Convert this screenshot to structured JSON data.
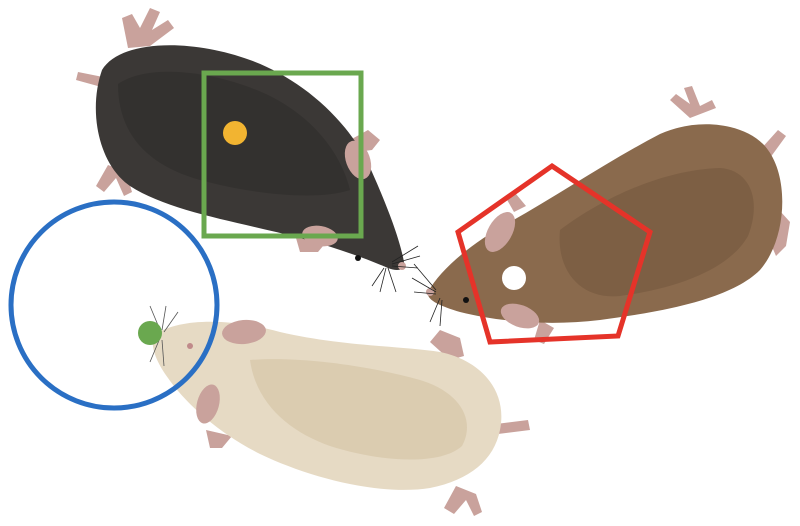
{
  "colors": {
    "background": "#ffffff",
    "mouse_black_body": "#3b3836",
    "mouse_black_shade": "#2e2b2a",
    "mouse_brown_body": "#8a6a4d",
    "mouse_brown_shade": "#6f543c",
    "mouse_cream_body": "#e6dac4",
    "mouse_cream_shade": "#d6c6a8",
    "mouse_skin": "#c9a29c",
    "mouse_skin_dark": "#a9807a",
    "square_marker": "#6aa84f",
    "pentagon_marker": "#e53329",
    "circle_marker": "#2a6fc4",
    "dot_yellow": "#f2b431",
    "dot_white": "#ffffff",
    "dot_green": "#6aa84f"
  },
  "markers": [
    {
      "shape": "square",
      "color": "green"
    },
    {
      "shape": "pentagon",
      "color": "red"
    },
    {
      "shape": "circle",
      "color": "blue"
    }
  ],
  "dots": [
    {
      "color": "yellow"
    },
    {
      "color": "white"
    },
    {
      "color": "green"
    }
  ],
  "mice": [
    {
      "fur": "black"
    },
    {
      "fur": "brown"
    },
    {
      "fur": "cream"
    }
  ]
}
